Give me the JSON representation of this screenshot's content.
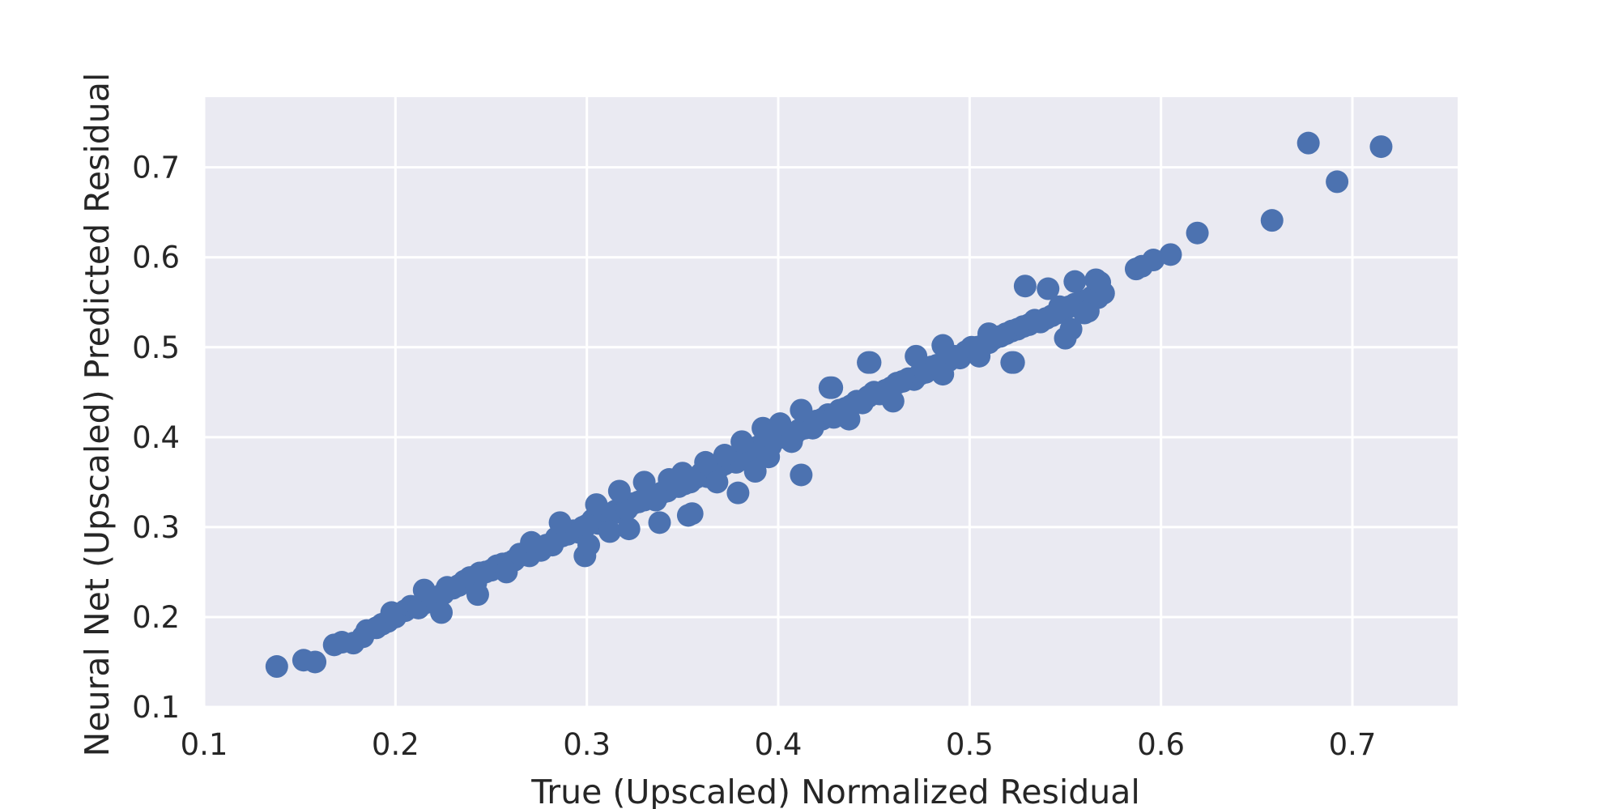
{
  "chart_data": {
    "type": "scatter",
    "title": "",
    "xlabel": "True (Upscaled) Normalized Residual",
    "ylabel": "Neural Net (Upscaled) Predicted Residual",
    "xlim": [
      0.1,
      0.755
    ],
    "ylim": [
      0.1,
      0.778
    ],
    "xticks": [
      "0.1",
      "0.2",
      "0.3",
      "0.4",
      "0.5",
      "0.6",
      "0.7"
    ],
    "yticks": [
      "0.1",
      "0.2",
      "0.3",
      "0.4",
      "0.5",
      "0.6",
      "0.7"
    ],
    "grid": true,
    "colors": {
      "background": "#eaeaf2",
      "grid": "#ffffff",
      "points": "#4c72b0"
    },
    "series": [
      {
        "x": [
          0.138,
          0.152,
          0.158,
          0.168,
          0.172,
          0.178,
          0.183,
          0.185,
          0.19,
          0.193,
          0.196,
          0.2,
          0.205,
          0.208,
          0.212,
          0.216,
          0.219,
          0.222,
          0.225,
          0.227,
          0.23,
          0.233,
          0.236,
          0.239,
          0.242,
          0.244,
          0.247,
          0.25,
          0.253,
          0.256,
          0.259,
          0.262,
          0.265,
          0.268,
          0.27,
          0.273,
          0.276,
          0.279,
          0.282,
          0.284,
          0.287,
          0.29,
          0.293,
          0.296,
          0.298,
          0.3,
          0.303,
          0.306,
          0.309,
          0.312,
          0.315,
          0.318,
          0.321,
          0.324,
          0.327,
          0.33,
          0.333,
          0.336,
          0.339,
          0.342,
          0.345,
          0.348,
          0.351,
          0.354,
          0.357,
          0.36,
          0.363,
          0.366,
          0.369,
          0.372,
          0.375,
          0.378,
          0.381,
          0.384,
          0.387,
          0.39,
          0.393,
          0.396,
          0.399,
          0.402,
          0.405,
          0.408,
          0.411,
          0.414,
          0.417,
          0.42,
          0.423,
          0.426,
          0.429,
          0.432,
          0.435,
          0.438,
          0.441,
          0.444,
          0.447,
          0.45,
          0.453,
          0.456,
          0.459,
          0.462,
          0.465,
          0.468,
          0.471,
          0.474,
          0.477,
          0.48,
          0.483,
          0.486,
          0.489,
          0.492,
          0.495,
          0.498,
          0.501,
          0.504,
          0.507,
          0.51,
          0.513,
          0.516,
          0.519,
          0.522,
          0.525,
          0.528,
          0.531,
          0.534,
          0.537,
          0.54,
          0.543,
          0.546,
          0.549,
          0.552,
          0.555,
          0.558,
          0.561,
          0.564,
          0.567,
          0.57,
          0.198,
          0.215,
          0.224,
          0.243,
          0.258,
          0.271,
          0.286,
          0.299,
          0.301,
          0.305,
          0.312,
          0.317,
          0.322,
          0.33,
          0.338,
          0.343,
          0.35,
          0.353,
          0.362,
          0.368,
          0.372,
          0.381,
          0.388,
          0.392,
          0.395,
          0.401,
          0.407,
          0.412,
          0.418,
          0.428,
          0.437,
          0.447,
          0.46,
          0.472,
          0.486,
          0.505,
          0.51,
          0.522,
          0.529,
          0.541,
          0.55,
          0.555,
          0.562,
          0.566,
          0.568,
          0.547,
          0.553,
          0.56,
          0.587,
          0.59,
          0.596,
          0.605,
          0.619,
          0.658,
          0.677,
          0.692,
          0.715,
          0.379,
          0.412,
          0.523,
          0.448,
          0.486,
          0.427,
          0.355
        ],
        "y": [
          0.145,
          0.152,
          0.15,
          0.169,
          0.172,
          0.171,
          0.178,
          0.185,
          0.188,
          0.192,
          0.195,
          0.2,
          0.207,
          0.212,
          0.21,
          0.216,
          0.222,
          0.22,
          0.226,
          0.233,
          0.232,
          0.235,
          0.24,
          0.244,
          0.238,
          0.249,
          0.25,
          0.252,
          0.257,
          0.259,
          0.26,
          0.263,
          0.27,
          0.269,
          0.268,
          0.275,
          0.274,
          0.28,
          0.28,
          0.288,
          0.29,
          0.292,
          0.296,
          0.294,
          0.3,
          0.302,
          0.308,
          0.304,
          0.31,
          0.315,
          0.318,
          0.316,
          0.32,
          0.326,
          0.328,
          0.33,
          0.335,
          0.33,
          0.338,
          0.34,
          0.345,
          0.345,
          0.348,
          0.35,
          0.355,
          0.36,
          0.356,
          0.365,
          0.366,
          0.37,
          0.375,
          0.372,
          0.38,
          0.385,
          0.38,
          0.39,
          0.392,
          0.39,
          0.398,
          0.4,
          0.405,
          0.402,
          0.408,
          0.41,
          0.414,
          0.418,
          0.42,
          0.425,
          0.422,
          0.43,
          0.432,
          0.435,
          0.44,
          0.438,
          0.445,
          0.45,
          0.448,
          0.452,
          0.455,
          0.46,
          0.462,
          0.465,
          0.464,
          0.47,
          0.472,
          0.478,
          0.48,
          0.482,
          0.485,
          0.49,
          0.488,
          0.495,
          0.5,
          0.5,
          0.502,
          0.505,
          0.51,
          0.512,
          0.515,
          0.518,
          0.52,
          0.523,
          0.525,
          0.53,
          0.528,
          0.532,
          0.535,
          0.538,
          0.54,
          0.545,
          0.548,
          0.55,
          0.552,
          0.556,
          0.555,
          0.56,
          0.205,
          0.23,
          0.205,
          0.225,
          0.25,
          0.283,
          0.305,
          0.268,
          0.28,
          0.325,
          0.295,
          0.34,
          0.298,
          0.35,
          0.305,
          0.353,
          0.36,
          0.313,
          0.372,
          0.35,
          0.38,
          0.395,
          0.362,
          0.41,
          0.378,
          0.415,
          0.395,
          0.43,
          0.41,
          0.455,
          0.42,
          0.483,
          0.44,
          0.49,
          0.502,
          0.49,
          0.515,
          0.483,
          0.568,
          0.565,
          0.51,
          0.573,
          0.54,
          0.575,
          0.572,
          0.545,
          0.52,
          0.538,
          0.587,
          0.59,
          0.597,
          0.603,
          0.627,
          0.641,
          0.727,
          0.684,
          0.723,
          0.338,
          0.358,
          0.483,
          0.483,
          0.47,
          0.455,
          0.315
        ]
      }
    ]
  }
}
